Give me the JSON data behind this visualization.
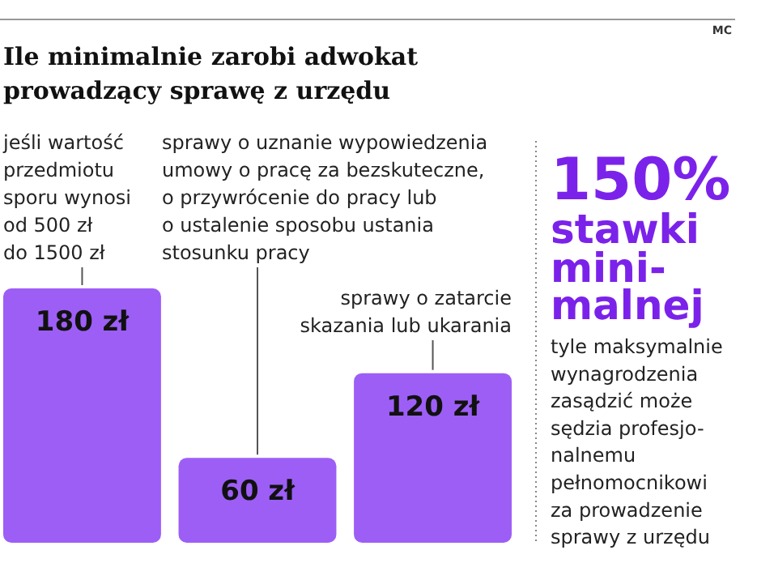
{
  "chart_data": {
    "type": "bar",
    "title": "Ile minimalnie zarobi adwokat\nprowadzący sprawę z urzędu",
    "categories": [
      null,
      null,
      null
    ],
    "values": [
      180,
      60,
      120
    ],
    "value_labels": [
      "180 zł",
      "60 zł",
      "120 zł"
    ],
    "color": "#9d5ef6",
    "annotations": [
      "MC",
      "150%\nstawki\nmini-\nmalnej",
      "tyle maksymalnie\nwynagrodzenia\nzasądzić może\nsędzia profesjo-\nnalnemu\npełnomocnikowi\nza prowadzenie\nsprawy z urzędu",
      "jeśli wartość\nprzedmiotu\nsporu wynosi\nod 500 zł\ndo 1500 zł",
      "sprawy o uznanie wypowiedzenia\numowy o pracę za bezskuteczne,\no przywrócenie do pracy lub\no ustalenie sposobu ustania\nstosunku pracy",
      "sprawy o zatarcie\nskazania lub ukarania"
    ]
  }
}
